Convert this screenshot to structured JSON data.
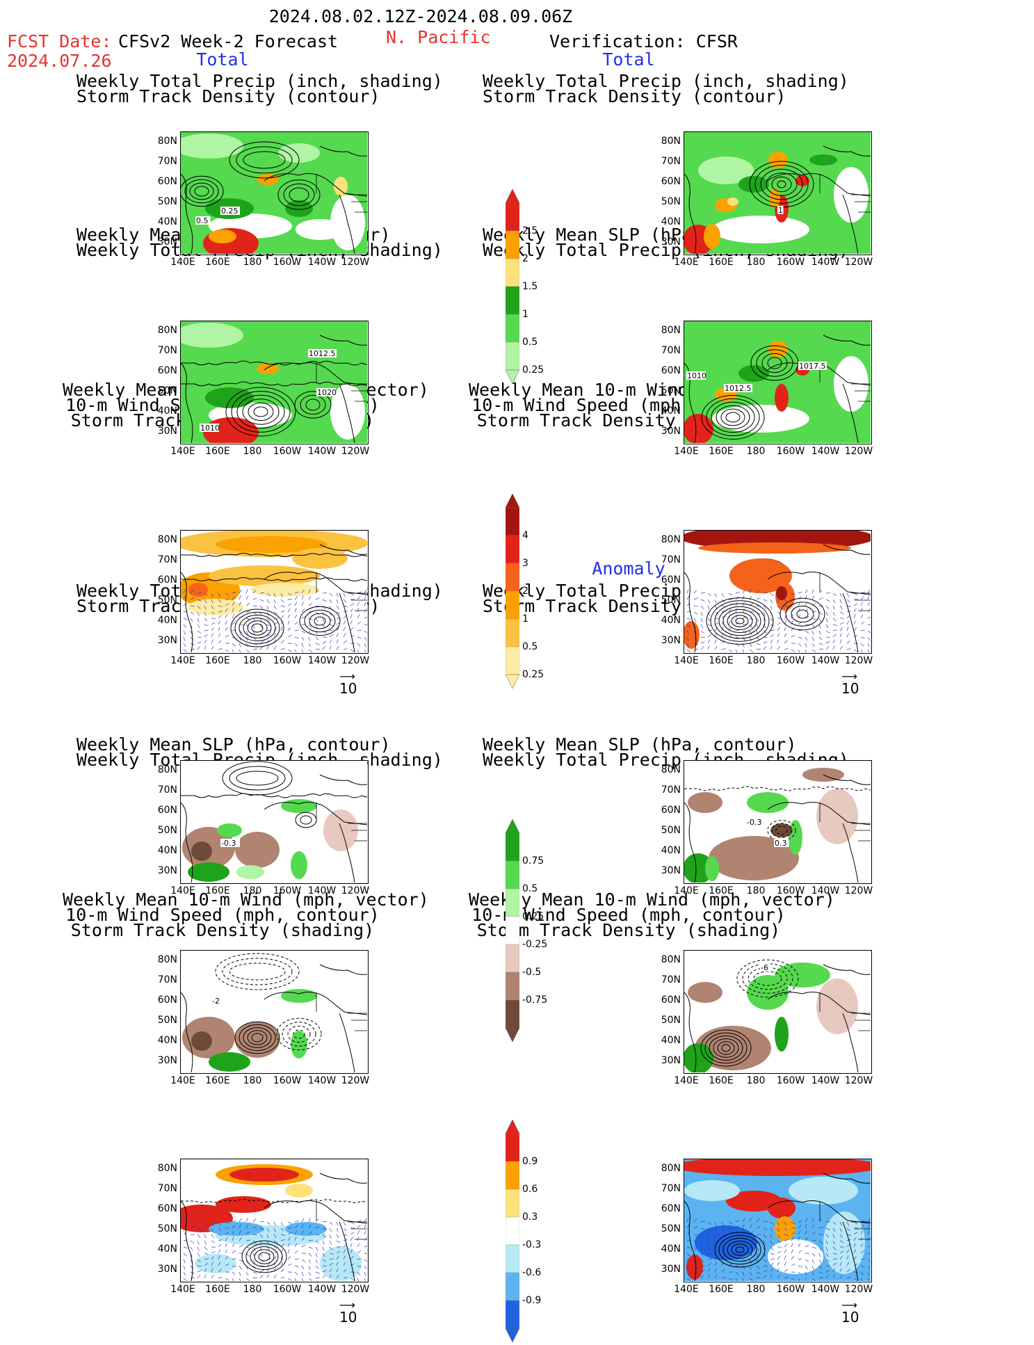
{
  "header": {
    "period": "2024.08.02.12Z-2024.08.09.06Z",
    "fcst_label": "FCST Date:",
    "fcst_date": "2024.07.26",
    "left_title": "CFSv2 Week-2 Forecast",
    "region": "N. Pacific",
    "right_title": "Verification: CFSR"
  },
  "sections": {
    "total": "Total",
    "anomaly": "Anomaly"
  },
  "panel_titles": {
    "precip_storm_1": "Weekly Total Precip (inch, shading)",
    "precip_storm_2": "Storm Track Density (contour)",
    "slp_1": "Weekly Mean SLP (hPa, contour)",
    "slp_2": "Weekly Total Precip (inch, shading)",
    "wind_1": "Weekly Mean 10-m Wind (mph, vector)",
    "wind_2": "10-m Wind Speed (mph, contour)",
    "wind_3": "Storm Track Density (shading)"
  },
  "axes": {
    "lat": [
      "80N",
      "70N",
      "60N",
      "50N",
      "40N",
      "30N"
    ],
    "lon": [
      "140E",
      "160E",
      "180",
      "160W",
      "140W",
      "120W"
    ]
  },
  "colorbars": {
    "precip_total": {
      "labels": [
        "2.5",
        "2",
        "1.5",
        "1",
        "0.5",
        "0.25"
      ],
      "colors": [
        "#e2231a",
        "#fba101",
        "#fde17b",
        "#1ea31b",
        "#55d94f",
        "#b0f5a4"
      ]
    },
    "storm_total": {
      "labels": [
        "4",
        "3",
        "2",
        "1",
        "0.5",
        "0.25"
      ],
      "colors": [
        "#a3160f",
        "#e2231a",
        "#f5631a",
        "#fba101",
        "#fbc240",
        "#fdeda4"
      ]
    },
    "precip_anom": {
      "labels": [
        "0.75",
        "0.5",
        "0.25",
        "-0.25",
        "-0.5",
        "-0.75"
      ],
      "colors": [
        "#1ea31b",
        "#55d94f",
        "#b0f5a4",
        "#ffffff",
        "#e8c9bf",
        "#b08471",
        "#6f4a3a"
      ]
    },
    "storm_anom": {
      "labels": [
        "0.9",
        "0.6",
        "0.3",
        "-0.3",
        "-0.6",
        "-0.9"
      ],
      "colors": [
        "#e2231a",
        "#fba101",
        "#fde17b",
        "#ffffff",
        "#b7e8f5",
        "#5bb4f0",
        "#1f64de"
      ]
    }
  },
  "contour_labels": {
    "p1l": [
      "0.5",
      "0.25"
    ],
    "p1r": [
      "1"
    ],
    "p2l": [
      "1012.5",
      "1020",
      "1010"
    ],
    "p2r": [
      "1010",
      "1012.5",
      "1017.5"
    ],
    "p4l": [
      "-0.3"
    ],
    "p4r": [
      "-0.3",
      "0.3"
    ],
    "p5l": [
      "-2"
    ],
    "p5r": [
      "-6"
    ]
  },
  "vector_ref": "10"
}
